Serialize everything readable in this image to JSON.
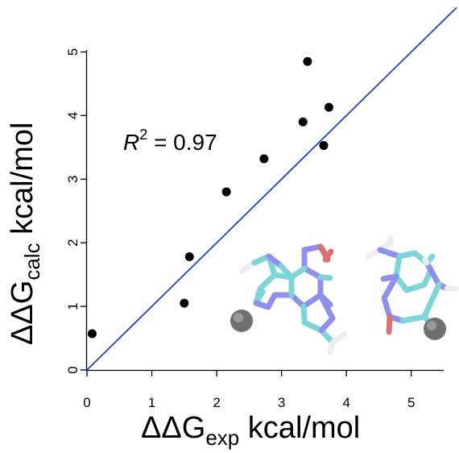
{
  "chart_data": {
    "type": "scatter",
    "xlabel": {
      "base": "ΔΔG",
      "sub": "exp",
      "unit": " kcal/mol"
    },
    "ylabel": {
      "base": "ΔΔG",
      "sub": "calc",
      "unit": " kcal/mol"
    },
    "xlim": [
      0,
      5.5
    ],
    "ylim": [
      0,
      5.5
    ],
    "xticks": [
      "0",
      "1",
      "2",
      "3",
      "4",
      "5"
    ],
    "yticks": [
      "0",
      "1",
      "2",
      "3",
      "4",
      "5"
    ],
    "grid": false,
    "annotation": {
      "lhs": "R",
      "sup": "2",
      "rhs": " = 0.97"
    },
    "fit_line": {
      "slope": 1.0,
      "intercept": 0.0,
      "color": "#1f3fe0"
    },
    "points": [
      {
        "x": 0.08,
        "y": 0.57
      },
      {
        "x": 1.5,
        "y": 1.05
      },
      {
        "x": 1.58,
        "y": 1.78
      },
      {
        "x": 2.15,
        "y": 2.8
      },
      {
        "x": 2.73,
        "y": 3.32
      },
      {
        "x": 3.33,
        "y": 3.9
      },
      {
        "x": 3.4,
        "y": 4.85
      },
      {
        "x": 3.65,
        "y": 3.53
      },
      {
        "x": 3.73,
        "y": 4.13
      }
    ],
    "point_color": "#000000",
    "inset": "base-pair-molecule-render"
  }
}
